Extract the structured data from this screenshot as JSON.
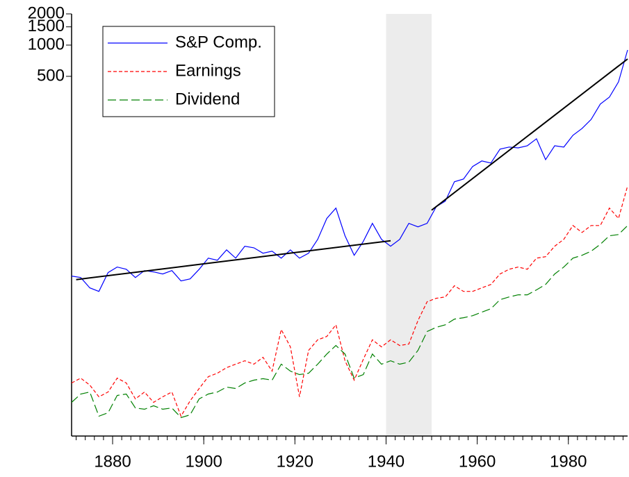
{
  "chart_data": {
    "type": "line",
    "log_y": true,
    "x": [
      1871,
      1873,
      1875,
      1877,
      1879,
      1881,
      1883,
      1885,
      1887,
      1889,
      1891,
      1893,
      1895,
      1897,
      1899,
      1901,
      1903,
      1905,
      1907,
      1909,
      1911,
      1913,
      1915,
      1917,
      1919,
      1921,
      1923,
      1925,
      1927,
      1929,
      1931,
      1933,
      1935,
      1937,
      1939,
      1941,
      1943,
      1945,
      1947,
      1949,
      1951,
      1953,
      1955,
      1957,
      1959,
      1961,
      1963,
      1965,
      1967,
      1969,
      1971,
      1973,
      1975,
      1977,
      1979,
      1981,
      1983,
      1985,
      1987,
      1989,
      1991,
      1993
    ],
    "series": [
      {
        "name": "S&P Comp.",
        "color": "#0000ff",
        "dash": "none",
        "values": [
          5.93,
          5.74,
          4.56,
          4.22,
          6.4,
          7.24,
          6.9,
          5.74,
          6.7,
          6.5,
          6.21,
          6.7,
          5.32,
          5.57,
          6.9,
          8.83,
          8.43,
          10.6,
          8.83,
          11.5,
          11.1,
          9.84,
          10.3,
          8.83,
          10.6,
          8.83,
          9.84,
          13.4,
          21.3,
          26.8,
          14.5,
          9.4,
          12.8,
          19.1,
          13.4,
          11.5,
          13.4,
          19.1,
          17.7,
          19.1,
          27.6,
          31.3,
          48.1,
          51.2,
          67.5,
          76.4,
          72.9,
          99.3,
          104,
          102,
          107,
          125,
          78.7,
          107,
          104,
          135,
          157,
          192,
          270,
          315,
          442,
          897
        ]
      },
      {
        "name": "Earnings",
        "color": "#ff0000",
        "dash": "5,3",
        "values": [
          0.552,
          0.615,
          0.527,
          0.406,
          0.452,
          0.615,
          0.552,
          0.388,
          0.452,
          0.359,
          0.406,
          0.452,
          0.264,
          0.371,
          0.489,
          0.635,
          0.686,
          0.776,
          0.838,
          0.904,
          0.838,
          0.977,
          0.718,
          1.81,
          1.23,
          0.406,
          1.14,
          1.44,
          1.55,
          2.01,
          0.904,
          0.588,
          0.933,
          1.44,
          1.23,
          1.44,
          1.27,
          1.31,
          2.21,
          3.35,
          3.62,
          3.73,
          4.78,
          4.22,
          4.22,
          4.56,
          4.92,
          6.21,
          6.9,
          7.24,
          6.9,
          8.83,
          9.12,
          11.5,
          13.4,
          18.2,
          15.6,
          18.2,
          18.2,
          26.8,
          21.3,
          43.9
        ]
      },
      {
        "name": "Dividend",
        "color": "#008000",
        "dash": "12,5",
        "values": [
          0.359,
          0.432,
          0.452,
          0.264,
          0.285,
          0.419,
          0.432,
          0.317,
          0.308,
          0.333,
          0.308,
          0.317,
          0.256,
          0.272,
          0.388,
          0.432,
          0.452,
          0.504,
          0.489,
          0.552,
          0.588,
          0.607,
          0.588,
          0.838,
          0.718,
          0.665,
          0.686,
          0.838,
          1.05,
          1.27,
          1.05,
          0.615,
          0.665,
          1.05,
          0.838,
          0.904,
          0.838,
          0.877,
          1.14,
          1.73,
          1.9,
          2.01,
          2.28,
          2.35,
          2.46,
          2.66,
          2.87,
          3.51,
          3.73,
          3.91,
          3.91,
          4.36,
          4.92,
          6.21,
          7.24,
          8.83,
          9.4,
          10.3,
          12.0,
          14.5,
          14.9,
          18.2
        ]
      }
    ],
    "trend_lines": [
      {
        "color": "#000000",
        "x": [
          1872,
          1941
        ],
        "values": [
          5.48,
          13.0
        ]
      },
      {
        "color": "#000000",
        "x": [
          1950,
          1993
        ],
        "values": [
          25.6,
          735
        ]
      }
    ],
    "shade": [
      1940,
      1950
    ],
    "shade_color": "#ececec",
    "xlim": [
      1871,
      1993
    ],
    "xticks": [
      1880,
      1900,
      1920,
      1940,
      1960,
      1980
    ],
    "x_minor_tick_step": 2,
    "ylim": [
      0.17,
      2000
    ],
    "yticks": [
      500,
      1000,
      1500,
      2000
    ],
    "legend": "top-left"
  }
}
